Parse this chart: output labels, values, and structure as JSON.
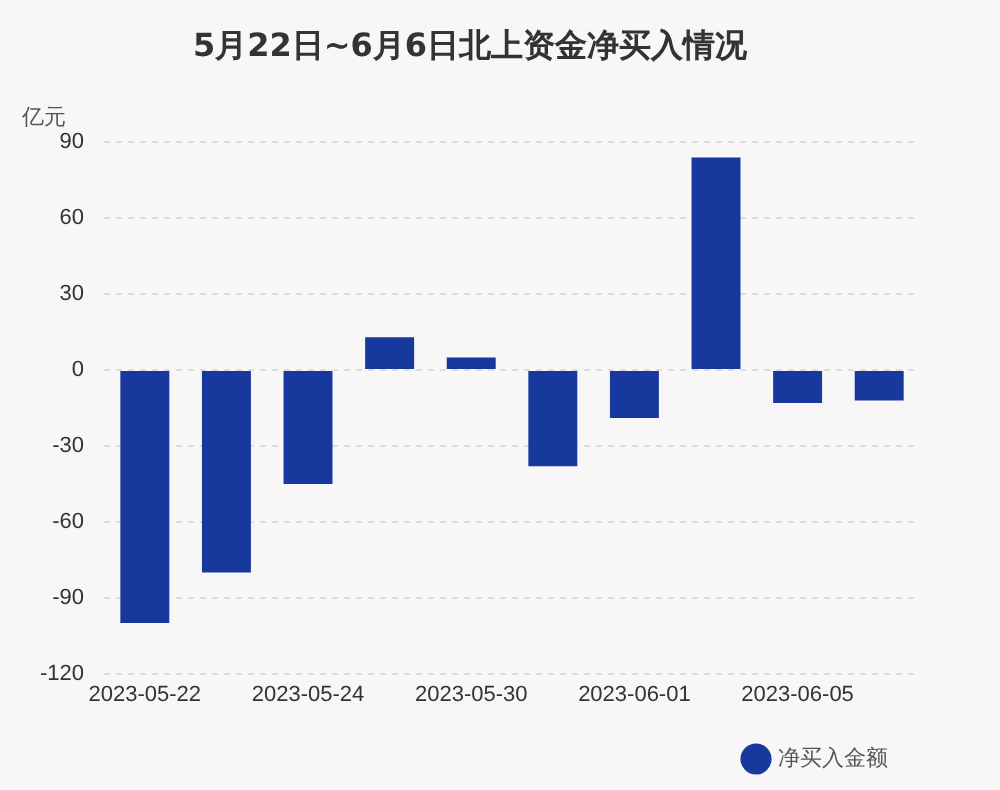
{
  "chart_data": {
    "type": "bar",
    "title": "5月22日~6月6日北上资金净买入情况",
    "ylabel": "亿元",
    "categories": [
      "2023-05-22",
      null,
      "2023-05-24",
      null,
      "2023-05-30",
      null,
      "2023-06-01",
      null,
      "2023-06-05",
      null
    ],
    "series": [
      {
        "name": "净买入金额",
        "color": "#17389c",
        "values": [
          -100,
          -80,
          -45,
          13,
          5,
          -38,
          -19,
          84,
          -13,
          -12
        ]
      }
    ],
    "ylim": [
      -120,
      90
    ],
    "yticks": [
      -120,
      -90,
      -60,
      -30,
      0,
      30,
      60,
      90
    ],
    "grid": "y",
    "legend": "bottom right"
  }
}
